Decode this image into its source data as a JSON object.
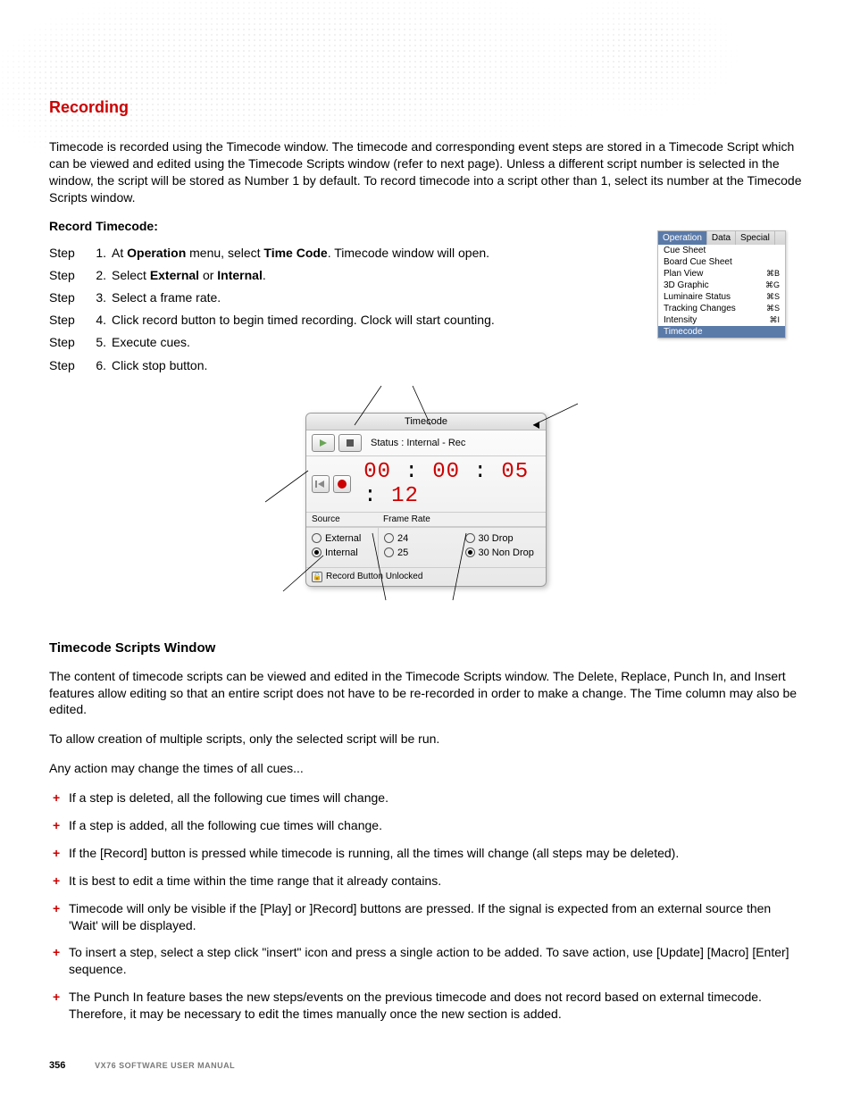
{
  "colors": {
    "heading_red": "#cc0000",
    "body_text": "#000000",
    "menu_highlight": "#5a7aa8",
    "footer_gray": "#7a7a7a"
  },
  "section_title": "Recording",
  "intro_para": "Timecode is recorded using the Timecode window.  The timecode and corresponding event steps are stored in a Timecode Script which can be viewed and edited using the Timecode Scripts window (refer to next page).  Unless a different script number is selected in the window, the script will be stored as Number 1 by default.  To record timecode into a script other than 1, select its number at the Timecode Scripts window.",
  "record_heading": "Record Timecode:",
  "steps_label": "Step",
  "steps": [
    {
      "n": "1.",
      "html": "At <b>Operation</b> menu, select <b>Time Code</b>.  Timecode window will open."
    },
    {
      "n": "2.",
      "html": "Select <b>External</b> or <b>Internal</b>."
    },
    {
      "n": "3.",
      "html": "Select a frame rate."
    },
    {
      "n": "4.",
      "html": "Click record button to begin timed recording.  Clock will start counting."
    },
    {
      "n": "5.",
      "html": "Execute cues."
    },
    {
      "n": "6.",
      "html": "Click stop button."
    }
  ],
  "op_menu": {
    "tabs": [
      "Operation",
      "Data",
      "Special"
    ],
    "active_tab_index": 0,
    "items": [
      {
        "label": "Cue Sheet",
        "cmd": ""
      },
      {
        "label": "Board Cue Sheet",
        "cmd": ""
      },
      {
        "label": "Plan View",
        "cmd": "⌘B"
      },
      {
        "label": "3D Graphic",
        "cmd": "⌘G"
      },
      {
        "label": "Luminaire Status",
        "cmd": "⌘S"
      },
      {
        "label": "Tracking Changes",
        "cmd": "⌘S"
      },
      {
        "label": "Intensity",
        "cmd": "⌘I"
      },
      {
        "label": "Timecode",
        "cmd": "",
        "highlight": true
      }
    ]
  },
  "tc_window": {
    "title": "Timecode",
    "status_prefix": "Status :  ",
    "status_value": "Internal - Rec",
    "clock_parts": [
      "00",
      "00",
      "05",
      "12"
    ],
    "clock_sep": " : ",
    "source_heading": "Source",
    "framerate_heading": "Frame Rate",
    "sources": [
      {
        "label": "External",
        "selected": false
      },
      {
        "label": "Internal",
        "selected": true
      }
    ],
    "framerates": [
      {
        "label": "24",
        "selected": false
      },
      {
        "label": "30 Drop",
        "selected": false
      },
      {
        "label": "25",
        "selected": false
      },
      {
        "label": "30 Non Drop",
        "selected": true
      }
    ],
    "lock_label": "Record Button Unlocked"
  },
  "scripts_heading": "Timecode Scripts Window",
  "scripts_p1": "The content of timecode scripts can be viewed and edited in the Timecode Scripts window.  The Delete, Replace, Punch In, and Insert features allow editing so that an entire script does not have to be re-recorded in order to make a change.  The Time column may also be edited.",
  "scripts_p2": "To allow creation of multiple scripts, only the selected script will be run.",
  "scripts_p3": "Any action may change the times of all cues...",
  "bullets": [
    "If a step is deleted, all the following cue times will change.",
    "If a step is added, all the following cue times will change.",
    "If the [Record] button is pressed while timecode is running, all the times will change (all steps may be deleted).",
    "It is best to edit a time within the time range that it already contains.",
    "Timecode will only be visible if the [Play] or ]Record] buttons are pressed. If the signal is expected from an external source then 'Wait' will be displayed.",
    "To insert a step, select a step click \"insert\" icon and press a single action to be added. To save action, use [Update] [Macro] [Enter] sequence.",
    "The Punch In feature bases the new steps/events on the previous timecode and does not record based on external timecode.  Therefore, it may be necessary to edit the times manually once the new section is added."
  ],
  "footer": {
    "page": "356",
    "manual": "VX76 SOFTWARE USER MANUAL"
  }
}
